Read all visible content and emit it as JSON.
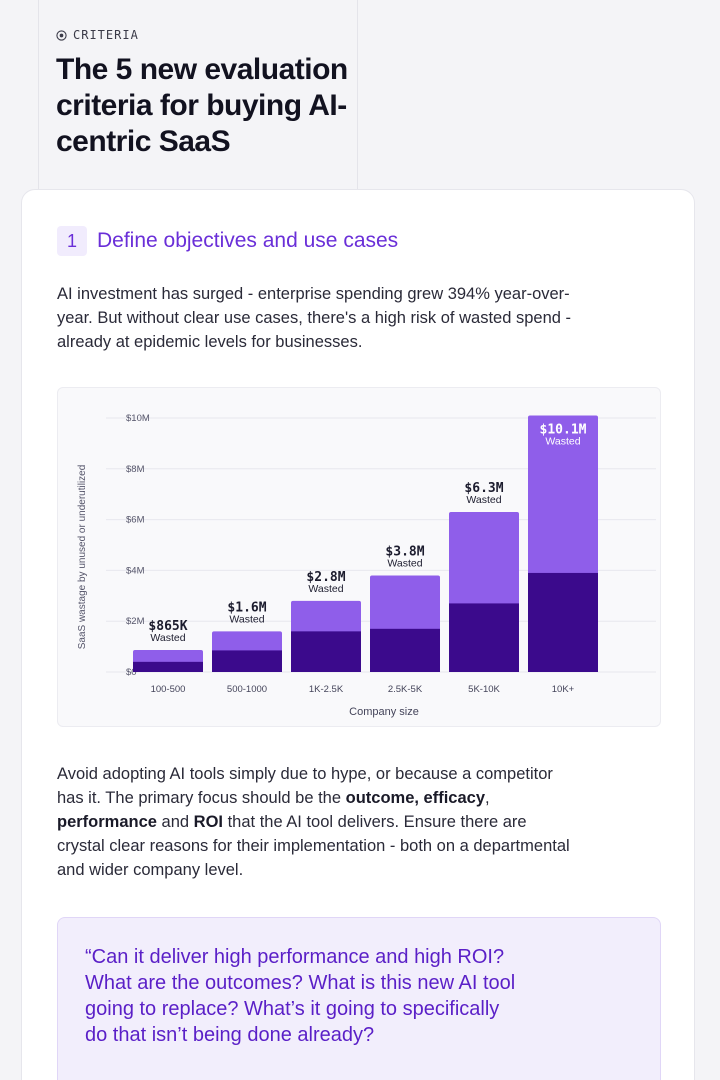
{
  "header": {
    "eyebrow_icon": "target-icon",
    "eyebrow": "CRITERIA",
    "title": "The 5 new evaluation criteria for buying AI-centric SaaS"
  },
  "section": {
    "number": "1",
    "title": "Define objectives and use cases",
    "intro": "AI investment has surged - enterprise spending grew 394% year-over-year. But without clear use cases, there's a high risk of wasted spend - already at epidemic levels for businesses.",
    "body_parts": [
      "Avoid adopting AI tools simply due to hype, or because a competitor has it. The primary focus should be the ",
      "outcome, efficacy",
      ", ",
      "performance",
      " and ",
      "ROI",
      " that the AI tool delivers. Ensure there are crystal clear reasons for their implementation - both on a departmental and wider company level."
    ],
    "quote": "“Can it deliver high performance and high ROI? What are the outcomes? What is this new AI tool going to replace? What’s it going to specifically do that isn’t being done already?"
  },
  "chart_data": {
    "type": "bar",
    "ylabel": "SaaS wastage by unused or underutilized",
    "xlabel": "Company size",
    "categories": [
      "100-500",
      "500-1000",
      "1K-2.5K",
      "2.5K-5K",
      "5K-10K",
      "10K+"
    ],
    "y_ticks": [
      "$10M",
      "$8M",
      "$6M",
      "$4M",
      "$2M",
      "$0"
    ],
    "y_tick_values": [
      10,
      8,
      6,
      4,
      2,
      0
    ],
    "ylim": [
      0,
      10
    ],
    "values": [
      0.865,
      1.6,
      2.8,
      3.8,
      6.3,
      10.1
    ],
    "base_values": [
      0.4,
      0.85,
      1.6,
      1.7,
      2.7,
      3.9
    ],
    "value_labels": [
      "$865K",
      "$1.6M",
      "$2.8M",
      "$3.8M",
      "$6.3M",
      "$10.1M"
    ],
    "sub_label": "Wasted",
    "colors": {
      "top": "#8f5eea",
      "base": "#3b0a8c"
    },
    "grid": true
  }
}
